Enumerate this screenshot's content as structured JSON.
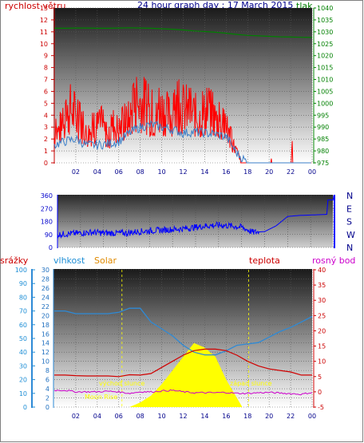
{
  "header": {
    "left_label": "rychlost větru",
    "title": "24 hour graph day : 17 March 2015",
    "right_label": "tlak"
  },
  "bottom_header": {
    "rain_label": "srážky",
    "humidity_label": "vlhkost",
    "solar_label": "Solar",
    "temp_label": "teplota",
    "dew_label": "rosný bod"
  },
  "annotations": {
    "sunrise": "východ slunce",
    "sunset": "západ slunce",
    "moonrise": "Moon Rise"
  },
  "colors": {
    "wind_gust": "#ff0000",
    "wind_avg": "#3a7ec8",
    "pressure": "#008000",
    "wind_dir": "#0000ff",
    "humidity": "#2e8ad6",
    "temperature": "#d00000",
    "dewpoint": "#cc00cc",
    "solar": "#ffff00",
    "event_line": "#ffff00"
  },
  "chart_data": [
    {
      "type": "line",
      "title": "24 hour graph day : 17 March 2015",
      "x_ticks": [
        "02",
        "04",
        "06",
        "08",
        "10",
        "12",
        "14",
        "16",
        "18",
        "20",
        "22",
        "00"
      ],
      "y_left_label": "rychlost větru",
      "y_left_ticks": [
        "0",
        "1",
        "2",
        "3",
        "4",
        "5",
        "6",
        "7",
        "8",
        "9",
        "10",
        "11",
        "12",
        "13"
      ],
      "ylim_left": [
        0,
        13
      ],
      "y_right_label": "tlak",
      "y_right_ticks": [
        "975",
        "980",
        "985",
        "990",
        "995",
        "1000",
        "1005",
        "1010",
        "1015",
        "1020",
        "1025",
        "1030",
        "1035",
        "1040"
      ],
      "ylim_right": [
        975,
        1040
      ],
      "series": [
        {
          "name": "gust",
          "axis": "left",
          "x": [
            0,
            0.5,
            1,
            1.5,
            2,
            2.5,
            3,
            3.5,
            4,
            4.5,
            5,
            5.5,
            6,
            6.5,
            7,
            7.5,
            8,
            8.5,
            9,
            9.5,
            10,
            10.5,
            11,
            11.5,
            12,
            12.5,
            13,
            13.5,
            14,
            14.5,
            15,
            15.5,
            16,
            16.5,
            17,
            17.5,
            18,
            18.5,
            19,
            19.5,
            20,
            20.5,
            21,
            21.5,
            22,
            22.5,
            23,
            23.5,
            24
          ],
          "values": [
            2.5,
            3,
            3.5,
            5,
            4,
            3.5,
            2.5,
            3,
            3,
            3.5,
            2,
            3.5,
            3,
            3.5,
            4,
            5,
            5.5,
            5,
            4.5,
            4,
            5,
            4.5,
            4,
            5,
            5,
            4.5,
            4.5,
            4,
            4.5,
            4.5,
            4,
            3.5,
            3,
            2,
            1,
            0,
            0,
            0,
            0,
            0,
            0,
            0,
            0,
            0,
            0,
            0,
            0,
            0,
            0
          ]
        },
        {
          "name": "average",
          "axis": "left",
          "x": [
            0,
            1,
            2,
            3,
            4,
            5,
            6,
            7,
            8,
            9,
            10,
            11,
            12,
            13,
            14,
            15,
            16,
            17,
            18,
            19,
            20,
            21,
            22,
            23,
            24
          ],
          "values": [
            1.5,
            1.8,
            2,
            1.5,
            1.5,
            1.6,
            1.8,
            2.5,
            3,
            3.2,
            3,
            2.8,
            2.5,
            2.6,
            2.5,
            2.4,
            2.2,
            0.8,
            0,
            0,
            0,
            0,
            0,
            0,
            0
          ]
        },
        {
          "name": "pressure",
          "axis": "right",
          "x": [
            0,
            1,
            2,
            3,
            4,
            5,
            6,
            7,
            8,
            9,
            10,
            11,
            12,
            13,
            14,
            15,
            16,
            17,
            18,
            19,
            20,
            21,
            22,
            23,
            24
          ],
          "values": [
            1031.5,
            1031.5,
            1031.6,
            1031.6,
            1031.5,
            1031.5,
            1031.6,
            1031.7,
            1031.6,
            1031.5,
            1031.3,
            1031.1,
            1030.8,
            1030.4,
            1030.1,
            1029.8,
            1029.4,
            1028.9,
            1028.5,
            1028.3,
            1028.1,
            1027.9,
            1027.8,
            1027.7,
            1027.6
          ]
        }
      ]
    },
    {
      "type": "line",
      "y_left_ticks": [
        "0",
        "90",
        "180",
        "270",
        "360"
      ],
      "ylim": [
        0,
        360
      ],
      "y_right_ticks": [
        "N",
        "W",
        "S",
        "E",
        "N"
      ],
      "series": [
        {
          "name": "wind direction",
          "x": [
            0,
            1,
            2,
            3,
            4,
            5,
            6,
            7,
            8,
            9,
            10,
            11,
            12,
            13,
            14,
            15,
            16,
            17,
            18,
            19,
            20,
            21,
            22,
            23,
            23.4,
            23.5,
            24
          ],
          "values": [
            90,
            95,
            100,
            105,
            100,
            100,
            100,
            110,
            115,
            120,
            125,
            130,
            140,
            150,
            155,
            150,
            140,
            105,
            110,
            150,
            215,
            222,
            225,
            228,
            230,
            330,
            330
          ]
        }
      ]
    },
    {
      "type": "line",
      "x_ticks": [
        "02",
        "04",
        "06",
        "08",
        "10",
        "12",
        "14",
        "16",
        "18",
        "20",
        "22",
        "00"
      ],
      "y_left_ticks": [
        "0",
        "10",
        "20",
        "30",
        "40",
        "50",
        "60",
        "70",
        "80",
        "90",
        "100"
      ],
      "ylim_left": [
        0,
        100
      ],
      "y_inner_ticks": [
        "0",
        "2",
        "4",
        "6",
        "8",
        "10",
        "12",
        "14",
        "16",
        "18",
        "20",
        "22",
        "24",
        "26",
        "28",
        "30"
      ],
      "ylim_inner": [
        0,
        30
      ],
      "y_right_ticks": [
        "-5",
        "0",
        "5",
        "10",
        "15",
        "20",
        "25",
        "30",
        "35",
        "40"
      ],
      "ylim_right": [
        -5,
        40
      ],
      "events": {
        "sunrise_hour": 6.3,
        "sunset_hour": 18.1,
        "moonrise_hour": 5.7
      },
      "series": [
        {
          "name": "humidity",
          "axis": "left",
          "x": [
            0,
            1,
            2,
            3,
            4,
            5,
            6,
            7,
            8,
            9,
            10,
            11,
            12,
            13,
            14,
            15,
            16,
            17,
            18,
            19,
            20,
            21,
            22,
            23,
            24
          ],
          "values": [
            70,
            70,
            68,
            68,
            68,
            68,
            69,
            72,
            72,
            62,
            57,
            52,
            45,
            40,
            38,
            38,
            41,
            45,
            46,
            47,
            51,
            55,
            58,
            62,
            66
          ]
        },
        {
          "name": "temperature",
          "axis": "right",
          "x": [
            0,
            1,
            2,
            3,
            4,
            5,
            6,
            7,
            8,
            9,
            10,
            11,
            12,
            13,
            14,
            15,
            16,
            17,
            18,
            19,
            20,
            21,
            22,
            23,
            24
          ],
          "values": [
            5.5,
            5.5,
            5.3,
            5.2,
            5.2,
            5.2,
            5,
            5.6,
            5.5,
            6,
            8,
            10,
            12,
            13.5,
            14,
            14,
            13.5,
            12,
            10,
            8.5,
            7.5,
            7,
            6.5,
            5.5,
            5.5
          ]
        },
        {
          "name": "dewpoint",
          "axis": "right",
          "x": [
            0,
            1,
            2,
            3,
            4,
            5,
            6,
            7,
            8,
            9,
            10,
            11,
            12,
            13,
            14,
            15,
            16,
            17,
            18,
            19,
            20,
            21,
            22,
            23,
            24
          ],
          "values": [
            0.5,
            0.5,
            0,
            0,
            0,
            0.2,
            0,
            -0.5,
            0,
            0,
            0.3,
            0.5,
            0,
            -0.3,
            -0.3,
            -0.3,
            -0.2,
            -0.5,
            -0.5,
            -0.3,
            -0.2,
            -0.4,
            -0.6,
            -0.8,
            -0.2
          ]
        },
        {
          "name": "solar",
          "axis": "inner",
          "x": [
            7,
            8,
            9,
            10,
            11,
            12,
            13,
            14,
            15,
            16,
            17,
            17.5
          ],
          "values": [
            0,
            1,
            2.5,
            5,
            8,
            11,
            14,
            13,
            11,
            6,
            2,
            0
          ]
        }
      ]
    }
  ]
}
